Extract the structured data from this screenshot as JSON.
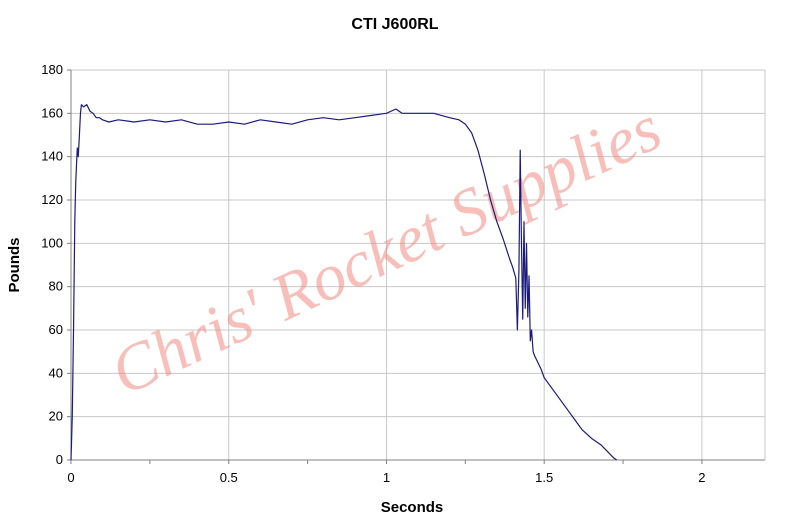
{
  "watermark": "Chris' Rocket Supplies",
  "colors": {
    "line": "#1a1a80",
    "grid": "#c8c8c8",
    "axis": "#808080",
    "watermark": "#f28b82"
  },
  "chart_data": {
    "type": "line",
    "title": "CTI J600RL",
    "xlabel": "Seconds",
    "ylabel": "Pounds",
    "xlim": [
      0,
      2.2
    ],
    "ylim": [
      0,
      180
    ],
    "xticks": [
      0,
      0.5,
      1,
      1.5,
      2
    ],
    "yticks": [
      0,
      20,
      40,
      60,
      80,
      100,
      120,
      140,
      160,
      180
    ],
    "grid": true,
    "legend": "none",
    "series": [
      {
        "values": [
          [
            0,
            0
          ],
          [
            0.004,
            20
          ],
          [
            0.008,
            60
          ],
          [
            0.012,
            110
          ],
          [
            0.015,
            128
          ],
          [
            0.018,
            138
          ],
          [
            0.02,
            144
          ],
          [
            0.023,
            140
          ],
          [
            0.026,
            148
          ],
          [
            0.03,
            160
          ],
          [
            0.033,
            164
          ],
          [
            0.04,
            163
          ],
          [
            0.05,
            164
          ],
          [
            0.06,
            161
          ],
          [
            0.07,
            160
          ],
          [
            0.08,
            158
          ],
          [
            0.09,
            158
          ],
          [
            0.1,
            157
          ],
          [
            0.12,
            156
          ],
          [
            0.15,
            157
          ],
          [
            0.2,
            156
          ],
          [
            0.25,
            157
          ],
          [
            0.3,
            156
          ],
          [
            0.35,
            157
          ],
          [
            0.4,
            155
          ],
          [
            0.45,
            155
          ],
          [
            0.5,
            156
          ],
          [
            0.55,
            155
          ],
          [
            0.6,
            157
          ],
          [
            0.65,
            156
          ],
          [
            0.7,
            155
          ],
          [
            0.75,
            157
          ],
          [
            0.8,
            158
          ],
          [
            0.85,
            157
          ],
          [
            0.9,
            158
          ],
          [
            0.95,
            159
          ],
          [
            1.0,
            160
          ],
          [
            1.03,
            162
          ],
          [
            1.05,
            160
          ],
          [
            1.1,
            160
          ],
          [
            1.15,
            160
          ],
          [
            1.2,
            158
          ],
          [
            1.23,
            157
          ],
          [
            1.25,
            155
          ],
          [
            1.27,
            151
          ],
          [
            1.29,
            143
          ],
          [
            1.31,
            132
          ],
          [
            1.33,
            120
          ],
          [
            1.35,
            110
          ],
          [
            1.37,
            102
          ],
          [
            1.39,
            93
          ],
          [
            1.4,
            89
          ],
          [
            1.41,
            84
          ],
          [
            1.415,
            60
          ],
          [
            1.42,
            88
          ],
          [
            1.424,
            143
          ],
          [
            1.428,
            100
          ],
          [
            1.432,
            65
          ],
          [
            1.436,
            110
          ],
          [
            1.44,
            70
          ],
          [
            1.444,
            100
          ],
          [
            1.448,
            66
          ],
          [
            1.452,
            85
          ],
          [
            1.456,
            55
          ],
          [
            1.46,
            60
          ],
          [
            1.465,
            50
          ],
          [
            1.47,
            48
          ],
          [
            1.48,
            45
          ],
          [
            1.49,
            42
          ],
          [
            1.5,
            38
          ],
          [
            1.52,
            34
          ],
          [
            1.55,
            28
          ],
          [
            1.58,
            22
          ],
          [
            1.6,
            18
          ],
          [
            1.62,
            14
          ],
          [
            1.65,
            10
          ],
          [
            1.68,
            7
          ],
          [
            1.7,
            4
          ],
          [
            1.72,
            1
          ],
          [
            1.73,
            0
          ]
        ]
      }
    ]
  }
}
